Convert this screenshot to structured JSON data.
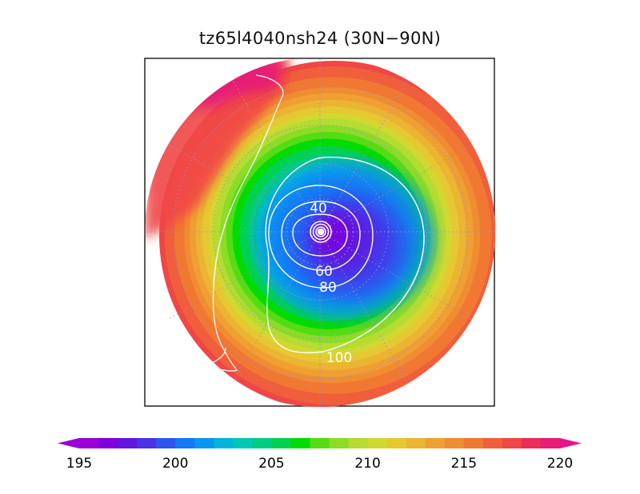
{
  "title": "tz65l4040nsh24 (30N−90N)",
  "map": {
    "projection": "north-polar-stereographic",
    "lat_range": [
      30,
      90
    ],
    "field_range": [
      195,
      220
    ],
    "contours": [
      {
        "value": 40,
        "label": "40"
      },
      {
        "value": 60,
        "label": "60"
      },
      {
        "value": 80,
        "label": "80"
      },
      {
        "value": 100,
        "label": "100"
      }
    ]
  },
  "colorbar": {
    "min": 195,
    "max": 220,
    "step": 1,
    "extend": "both",
    "tick_labels": [
      "195",
      "200",
      "205",
      "210",
      "215",
      "220"
    ],
    "colors": [
      "#9b00d9",
      "#7f00dc",
      "#6414e0",
      "#4a32e8",
      "#2d55f0",
      "#1478f5",
      "#0a96f0",
      "#00b4dc",
      "#00c8b4",
      "#00cc82",
      "#00d250",
      "#00dc00",
      "#55dc14",
      "#8cdc28",
      "#b4dc32",
      "#d2d732",
      "#e6c832",
      "#ebb432",
      "#f0a032",
      "#f08c32",
      "#f07832",
      "#f05f3c",
      "#f04646",
      "#eb2d5a",
      "#e61e78",
      "#eb1488",
      "#e6148c"
    ],
    "low_color": "#9b00d9",
    "high_color": "#e6148c"
  }
}
